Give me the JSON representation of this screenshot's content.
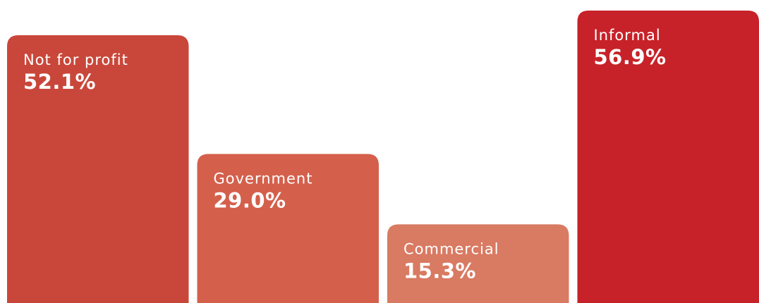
{
  "chart_data": {
    "type": "bar",
    "categories": [
      "Not for profit",
      "Government",
      "Commercial",
      "Informal"
    ],
    "values": [
      52.1,
      29.0,
      15.3,
      56.9
    ],
    "value_labels": [
      "52.1%",
      "29.0%",
      "15.3%",
      "56.9%"
    ],
    "colors": [
      "#c9473a",
      "#d4604c",
      "#d97a62",
      "#c72229"
    ]
  }
}
